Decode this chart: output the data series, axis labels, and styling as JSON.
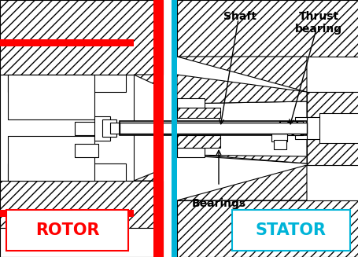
{
  "bg_color": "#ffffff",
  "red_color": "#ff0000",
  "cyan_color": "#00b4d8",
  "black_color": "#000000",
  "rotor_label": "ROTOR",
  "stator_label": "STATOR",
  "shaft_label": "Shaft",
  "thrust_label": "Thrust\nbearing",
  "bearings_label": "Bearings",
  "figsize": [
    4.56,
    3.27
  ],
  "dpi": 100
}
